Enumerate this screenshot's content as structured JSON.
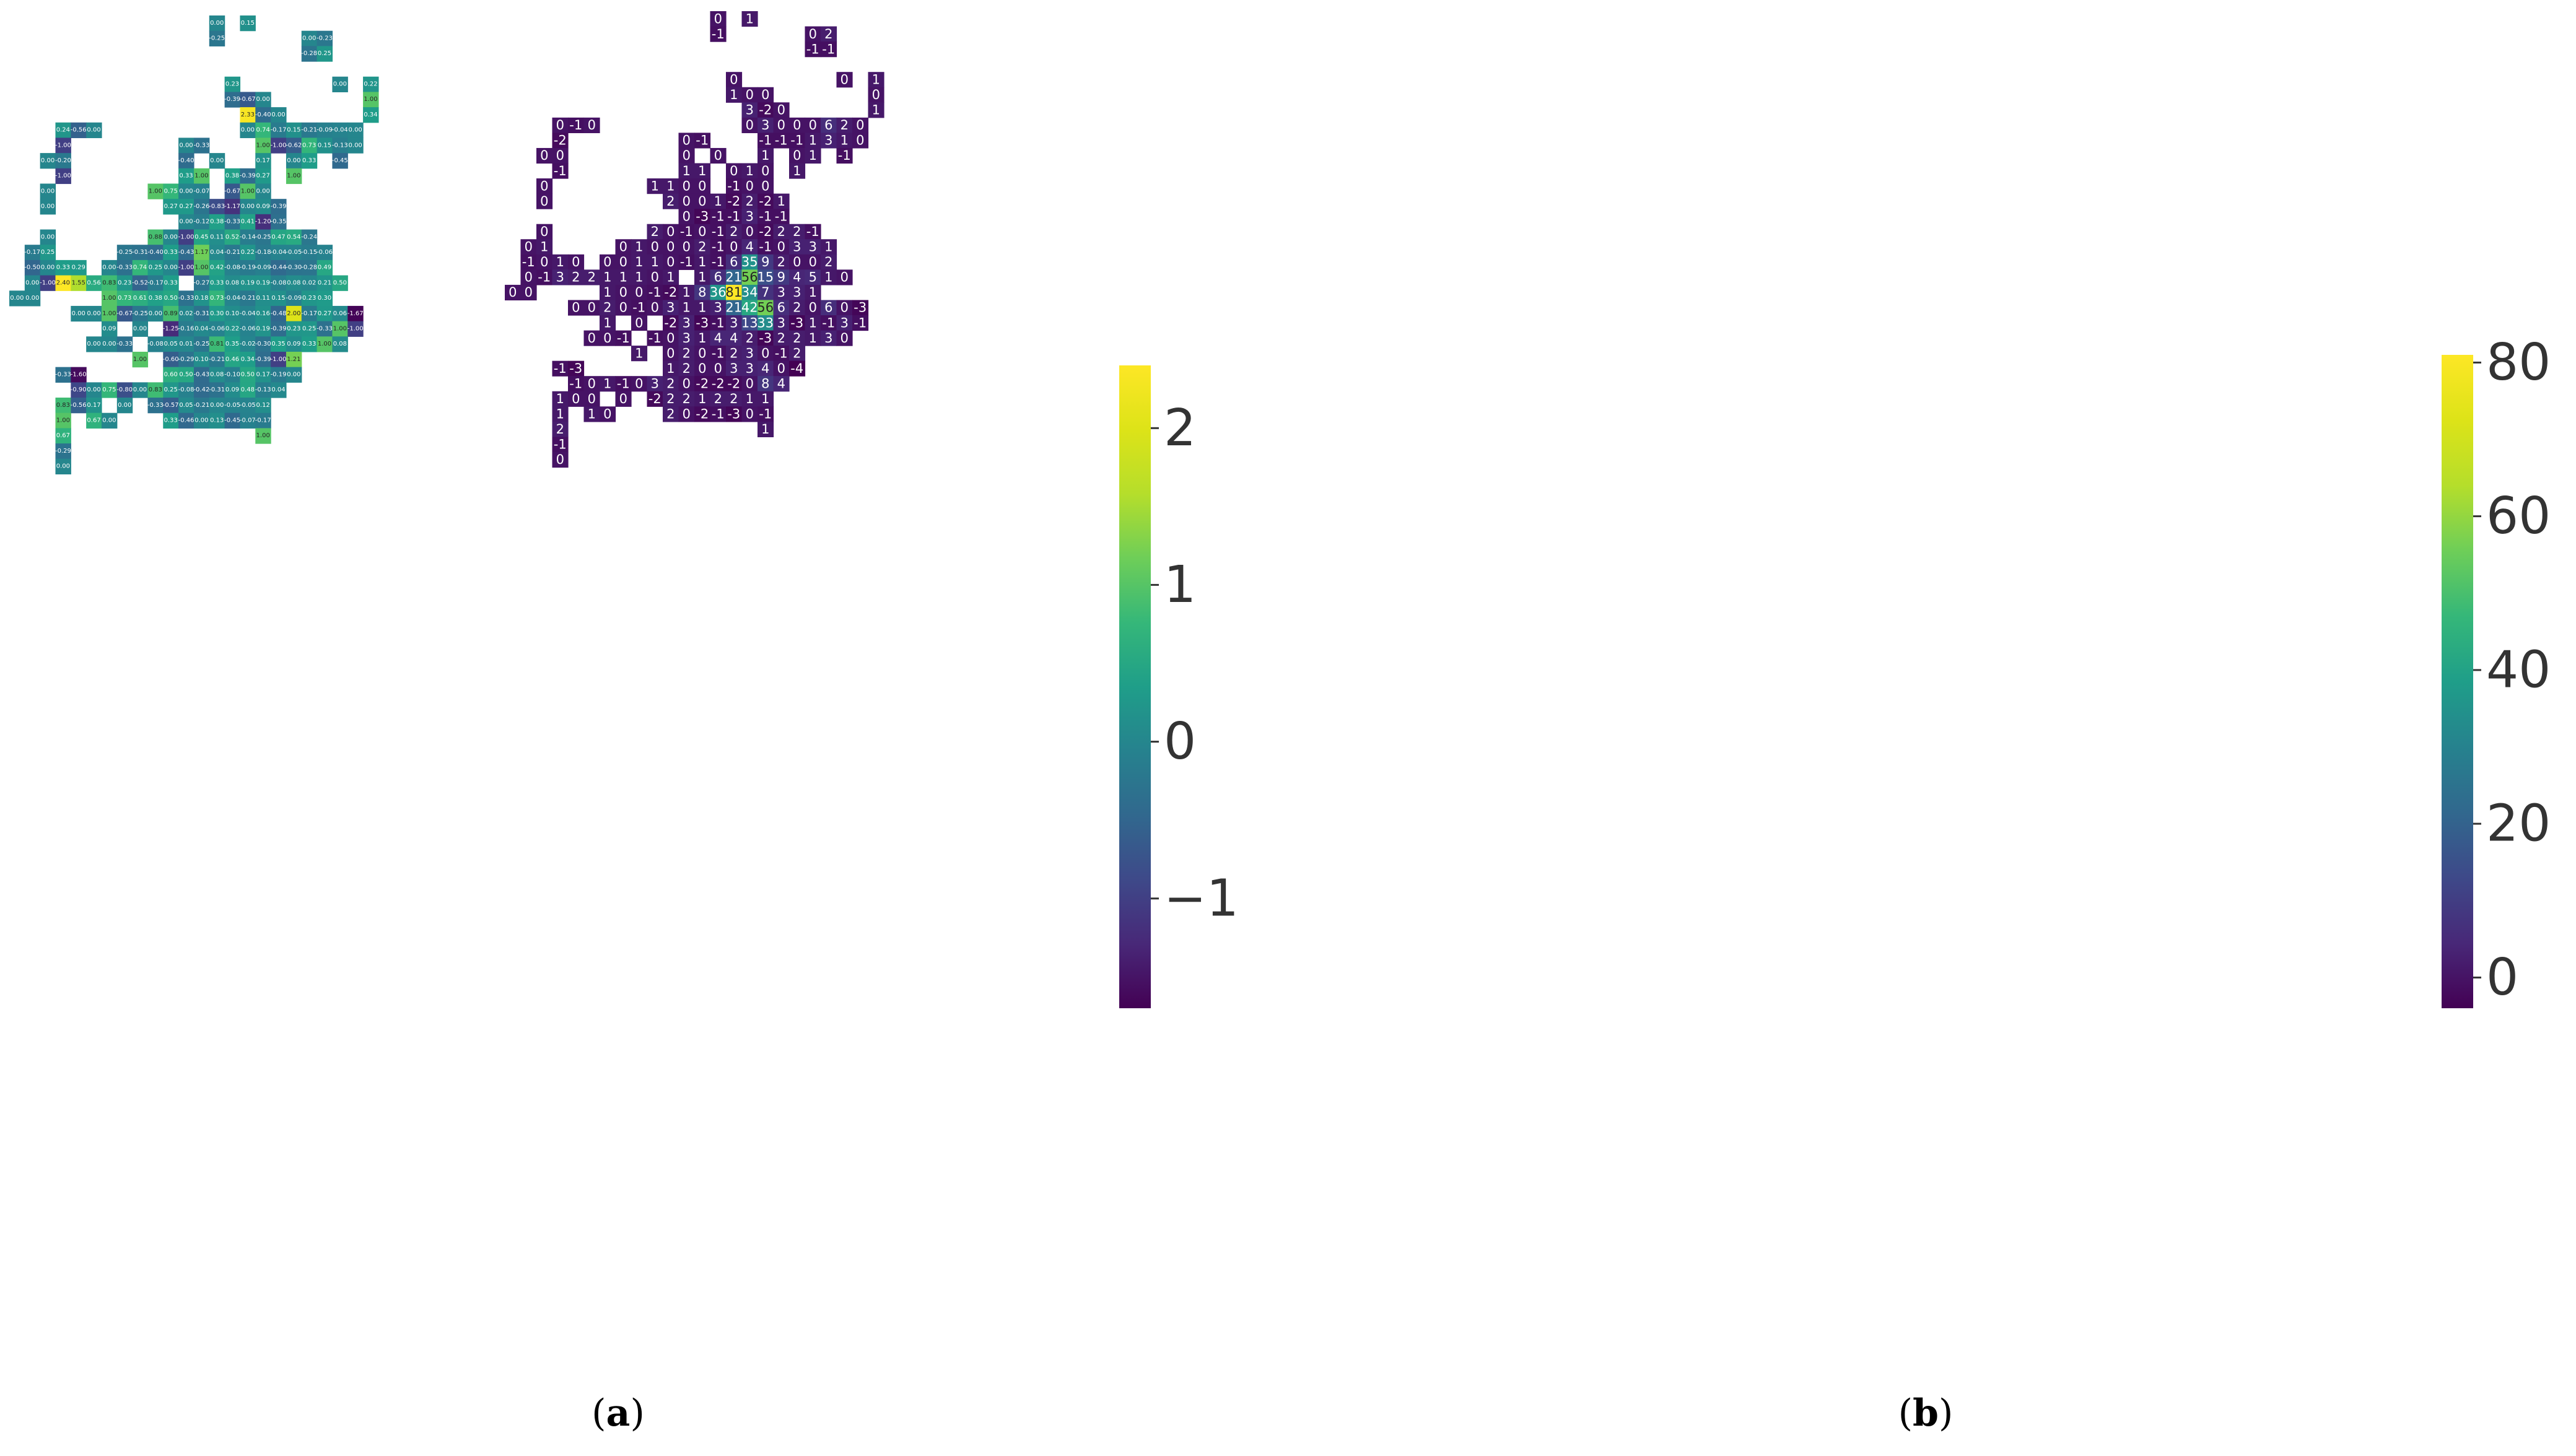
{
  "chart_data": [
    {
      "type": "heatmap",
      "caption_letter": "a",
      "colorbar_ticks": [
        2,
        1,
        0,
        -1
      ],
      "colorbar_tick_labels": [
        "2",
        "1",
        "0",
        "−1"
      ],
      "colorbar_range": [
        -1.7,
        2.4
      ],
      "colormap": "viridis",
      "grid": "sparse",
      "rows": [
        [
          0,
          13,
          [
            "0.00",
            "",
            "0.15"
          ]
        ],
        [
          1,
          13,
          [
            "-0.25"
          ]
        ],
        [
          1,
          19,
          [
            "0.00",
            "-0.23"
          ]
        ],
        [
          2,
          19,
          [
            "-0.28",
            "0.25"
          ]
        ],
        [
          4,
          14,
          [
            "0.23"
          ]
        ],
        [
          4,
          21,
          [
            "0.00",
            "",
            "0.22"
          ]
        ],
        [
          5,
          14,
          [
            "-0.39",
            "-0.67",
            "0.00"
          ]
        ],
        [
          5,
          23,
          [
            "1.00"
          ]
        ],
        [
          6,
          15,
          [
            "2.33",
            "-0.40",
            "0.00"
          ]
        ],
        [
          6,
          23,
          [
            "0.34"
          ]
        ],
        [
          7,
          3,
          [
            "0.24",
            "-0.56",
            "0.00"
          ]
        ],
        [
          7,
          15,
          [
            "0.00",
            "0.74",
            "-0.17",
            "0.15",
            "-0.21",
            "-0.09",
            "-0.04",
            "0.00"
          ]
        ],
        [
          8,
          3,
          [
            "-1.00"
          ]
        ],
        [
          8,
          11,
          [
            "0.00",
            "-0.33"
          ]
        ],
        [
          8,
          16,
          [
            "1.00",
            "-1.00",
            "-0.62",
            "0.73",
            "0.15",
            "-0.13",
            "0.00"
          ]
        ],
        [
          9,
          2,
          [
            "0.00",
            "-0.20"
          ]
        ],
        [
          9,
          11,
          [
            "-0.40",
            "",
            "0.00"
          ]
        ],
        [
          9,
          16,
          [
            "0.17",
            "",
            "0.00",
            "0.33",
            "",
            "-0.45"
          ]
        ],
        [
          10,
          3,
          [
            "-1.00"
          ]
        ],
        [
          10,
          11,
          [
            "0.33",
            "1.00",
            "",
            "0.38",
            "-0.39",
            "0.27",
            "",
            "1.00"
          ]
        ],
        [
          11,
          2,
          [
            "0.00"
          ]
        ],
        [
          11,
          9,
          [
            "1.00",
            "0.75",
            "0.00",
            "-0.07",
            "",
            "-0.67",
            "1.00",
            "0.00"
          ]
        ],
        [
          12,
          2,
          [
            "0.00"
          ]
        ],
        [
          12,
          10,
          [
            "0.27",
            "0.27",
            "-0.26",
            "-0.83",
            "-1.17",
            "0.00",
            "0.09",
            "-0.39"
          ]
        ],
        [
          13,
          11,
          [
            "0.00",
            "-0.12",
            "0.38",
            "-0.33",
            "0.41",
            "-1.20",
            "-0.35"
          ]
        ],
        [
          14,
          2,
          [
            "0.00"
          ]
        ],
        [
          14,
          9,
          [
            "0.88",
            "0.00",
            "-1.00",
            "0.45",
            "0.11",
            "0.52",
            "-0.14",
            "-0.25",
            "0.47",
            "0.54",
            "-0.24"
          ]
        ],
        [
          15,
          1,
          [
            "-0.17",
            "0.25"
          ]
        ],
        [
          15,
          7,
          [
            "-0.25",
            "-0.31",
            "-0.40",
            "0.33",
            "-0.43",
            "1.17",
            "0.04",
            "-0.21",
            "0.22",
            "-0.18",
            "-0.04",
            "-0.05",
            "-0.15",
            "-0.06"
          ]
        ],
        [
          16,
          1,
          [
            "-0.50",
            "0.00",
            "0.33",
            "0.29",
            "",
            "0.00",
            "-0.33",
            "0.74",
            "0.25",
            "0.00",
            "-1.00",
            "1.00",
            "0.42",
            "-0.08",
            "-0.19",
            "-0.09",
            "-0.44",
            "-0.30",
            "-0.28",
            "0.49"
          ]
        ],
        [
          17,
          1,
          [
            "0.00",
            "-1.00",
            "2.40",
            "1.55",
            "0.56",
            "0.83",
            "0.23",
            "-0.52",
            "-0.17",
            "0.33",
            "",
            "-0.27",
            "0.33",
            "0.08",
            "0.19",
            "0.19",
            "-0.08",
            "0.08",
            "0.02",
            "0.21",
            "0.50"
          ]
        ],
        [
          18,
          0,
          [
            "0.00",
            "0.00"
          ]
        ],
        [
          18,
          6,
          [
            "1.00",
            "0.73",
            "0.61",
            "0.38",
            "0.50",
            "-0.33",
            "0.18",
            "0.73",
            "-0.04",
            "-0.21",
            "0.11",
            "0.15",
            "-0.09",
            "0.23",
            "0.30"
          ]
        ],
        [
          19,
          4,
          [
            "0.00",
            "0.00",
            "1.00",
            "-0.67",
            "-0.25",
            "0.00",
            "0.89",
            "0.02",
            "-0.31",
            "0.30",
            "0.10",
            "-0.04",
            "0.16",
            "-0.48",
            "2.00",
            "-0.17",
            "0.27",
            "0.06",
            "-1.67"
          ]
        ],
        [
          20,
          6,
          [
            "0.09",
            "",
            "0.00",
            "",
            "-1.25",
            "-0.16",
            "0.04",
            "-0.06",
            "0.22",
            "-0.06",
            "0.19",
            "-0.39",
            "0.23",
            "0.25",
            "-0.33",
            "1.00",
            "-1.00"
          ]
        ],
        [
          21,
          5,
          [
            "0.00",
            "0.00",
            "-0.33",
            "",
            "-0.08",
            "0.05",
            "0.01",
            "-0.25",
            "0.81",
            "0.35",
            "-0.02",
            "-0.30",
            "0.35",
            "0.09",
            "0.33",
            "1.00",
            "0.08"
          ]
        ],
        [
          22,
          8,
          [
            "1.00",
            "",
            "-0.60",
            "-0.29",
            "0.10",
            "-0.21",
            "0.46",
            "0.34",
            "-0.39",
            "-1.00",
            "1.21"
          ]
        ],
        [
          23,
          3,
          [
            "-0.33",
            "-1.60"
          ]
        ],
        [
          23,
          10,
          [
            "0.60",
            "0.50",
            "-0.43",
            "0.08",
            "-0.10",
            "0.50",
            "0.17",
            "-0.19",
            "0.00"
          ]
        ],
        [
          24,
          4,
          [
            "-0.90",
            "0.00",
            "0.75",
            "-0.80",
            "0.00",
            "0.83",
            "0.25",
            "-0.08",
            "-0.42",
            "-0.31",
            "0.09",
            "0.48",
            "-0.13",
            "0.04"
          ]
        ],
        [
          25,
          3,
          [
            "0.83",
            "-0.56",
            "0.17",
            "",
            "0.00",
            "",
            "-0.33",
            "-0.57",
            "0.05",
            "-0.21",
            "0.00",
            "-0.05",
            "-0.05",
            "0.12"
          ]
        ],
        [
          26,
          3,
          [
            "1.00",
            "",
            "0.67",
            "0.00",
            "",
            "",
            "",
            "0.33",
            "-0.46",
            "0.00",
            "0.13",
            "-0.45",
            "-0.07",
            "-0.17"
          ]
        ],
        [
          27,
          3,
          [
            "0.67"
          ]
        ],
        [
          27,
          16,
          [
            "1.00"
          ]
        ],
        [
          28,
          3,
          [
            "-0.29"
          ]
        ],
        [
          29,
          3,
          [
            "0.00"
          ]
        ]
      ]
    },
    {
      "type": "heatmap",
      "caption_letter": "b",
      "colorbar_ticks": [
        80,
        60,
        40,
        20,
        0
      ],
      "colorbar_tick_labels": [
        "80",
        "60",
        "40",
        "20",
        "0"
      ],
      "colorbar_range": [
        -4,
        81
      ],
      "colormap": "viridis",
      "grid": "sparse",
      "rows": [
        [
          0,
          13,
          [
            "0",
            "",
            "1"
          ]
        ],
        [
          1,
          13,
          [
            "-1"
          ]
        ],
        [
          1,
          19,
          [
            "0",
            "2"
          ]
        ],
        [
          2,
          19,
          [
            "-1",
            "-1"
          ]
        ],
        [
          4,
          14,
          [
            "0"
          ]
        ],
        [
          4,
          21,
          [
            "0",
            "",
            "1"
          ]
        ],
        [
          5,
          14,
          [
            "1",
            "0",
            "0"
          ]
        ],
        [
          5,
          23,
          [
            "0"
          ]
        ],
        [
          6,
          15,
          [
            "3",
            "-2",
            "0"
          ]
        ],
        [
          6,
          23,
          [
            "1"
          ]
        ],
        [
          7,
          3,
          [
            "0",
            "-1",
            "0"
          ]
        ],
        [
          7,
          15,
          [
            "0",
            "3",
            "0",
            "0",
            "0",
            "6",
            "2",
            "0"
          ]
        ],
        [
          8,
          3,
          [
            "-2"
          ]
        ],
        [
          8,
          11,
          [
            "0",
            "-1"
          ]
        ],
        [
          8,
          16,
          [
            "-1",
            "-1",
            "-1",
            "1",
            "3",
            "1",
            "0"
          ]
        ],
        [
          9,
          2,
          [
            "0",
            "0"
          ]
        ],
        [
          9,
          11,
          [
            "0",
            "",
            "0"
          ]
        ],
        [
          9,
          16,
          [
            "1",
            "",
            "0",
            "1",
            "",
            "-1"
          ]
        ],
        [
          10,
          3,
          [
            "-1"
          ]
        ],
        [
          10,
          11,
          [
            "1",
            "1",
            "",
            "0",
            "1",
            "0",
            "",
            "1"
          ]
        ],
        [
          11,
          2,
          [
            "0"
          ]
        ],
        [
          11,
          9,
          [
            "1",
            "1",
            "0",
            "0",
            "",
            "-1",
            "0",
            "0"
          ]
        ],
        [
          12,
          2,
          [
            "0"
          ]
        ],
        [
          12,
          10,
          [
            "2",
            "0",
            "0",
            "1",
            "-2",
            "2",
            "-2",
            "1"
          ]
        ],
        [
          13,
          11,
          [
            "0",
            "-3",
            "-1",
            "-1",
            "3",
            "-1",
            "-1"
          ]
        ],
        [
          14,
          2,
          [
            "0"
          ]
        ],
        [
          14,
          9,
          [
            "2",
            "0",
            "-1",
            "0",
            "-1",
            "2",
            "0",
            "-2",
            "2",
            "2",
            "-1"
          ]
        ],
        [
          15,
          1,
          [
            "0",
            "1"
          ]
        ],
        [
          15,
          7,
          [
            "0",
            "1",
            "0",
            "0",
            "0",
            "2",
            "-1",
            "0",
            "4",
            "-1",
            "0",
            "3",
            "3",
            "1"
          ]
        ],
        [
          16,
          1,
          [
            "-1",
            "0",
            "1",
            "0",
            "",
            "0",
            "0",
            "1",
            "1",
            "0",
            "-1",
            "1",
            "-1",
            "6",
            "35",
            "9",
            "2",
            "0",
            "0",
            "2"
          ]
        ],
        [
          17,
          1,
          [
            "0",
            "-1",
            "3",
            "2",
            "2",
            "1",
            "1",
            "1",
            "0",
            "1",
            "",
            "1",
            "6",
            "21",
            "56",
            "15",
            "9",
            "4",
            "5",
            "1",
            "0"
          ]
        ],
        [
          18,
          0,
          [
            "0",
            "0"
          ]
        ],
        [
          18,
          6,
          [
            "1",
            "0",
            "0",
            "-1",
            "-2",
            "1",
            "8",
            "36",
            "81",
            "34",
            "7",
            "3",
            "3",
            "1"
          ]
        ],
        [
          19,
          4,
          [
            "0",
            "0",
            "2",
            "0",
            "-1",
            "0",
            "3",
            "1",
            "1",
            "3",
            "21",
            "42",
            "56",
            "6",
            "2",
            "0",
            "6",
            "0",
            "-3"
          ]
        ],
        [
          20,
          6,
          [
            "1",
            "",
            "0",
            "",
            "-2",
            "3",
            "-3",
            "-1",
            "3",
            "13",
            "33",
            "3",
            "-3",
            "1",
            "-1",
            "3",
            "-1"
          ]
        ],
        [
          21,
          5,
          [
            "0",
            "0",
            "-1",
            "",
            "-1",
            "0",
            "3",
            "1",
            "4",
            "4",
            "2",
            "-3",
            "2",
            "2",
            "1",
            "3",
            "0"
          ]
        ],
        [
          22,
          8,
          [
            "1",
            "",
            "0",
            "2",
            "0",
            "-1",
            "2",
            "3",
            "0",
            "-1",
            "2"
          ]
        ],
        [
          23,
          3,
          [
            "-1",
            "-3"
          ]
        ],
        [
          23,
          10,
          [
            "1",
            "2",
            "0",
            "0",
            "3",
            "3",
            "4",
            "0",
            "-4"
          ]
        ],
        [
          24,
          4,
          [
            "-1",
            "0",
            "1",
            "-1",
            "0",
            "3",
            "2",
            "0",
            "-2",
            "-2",
            "-2",
            "0",
            "8",
            "4"
          ]
        ],
        [
          25,
          3,
          [
            "1",
            "0",
            "0",
            "",
            "0",
            "",
            "-2",
            "2",
            "2",
            "1",
            "2",
            "2",
            "1",
            "1"
          ]
        ],
        [
          26,
          3,
          [
            "1",
            "",
            "1",
            "0",
            "",
            "",
            "",
            "2",
            "0",
            "-2",
            "-1",
            "-3",
            "0",
            "-1"
          ]
        ],
        [
          27,
          3,
          [
            "2"
          ]
        ],
        [
          27,
          16,
          [
            "1"
          ]
        ],
        [
          28,
          3,
          [
            "-1"
          ]
        ],
        [
          29,
          3,
          [
            "0"
          ]
        ]
      ]
    }
  ]
}
